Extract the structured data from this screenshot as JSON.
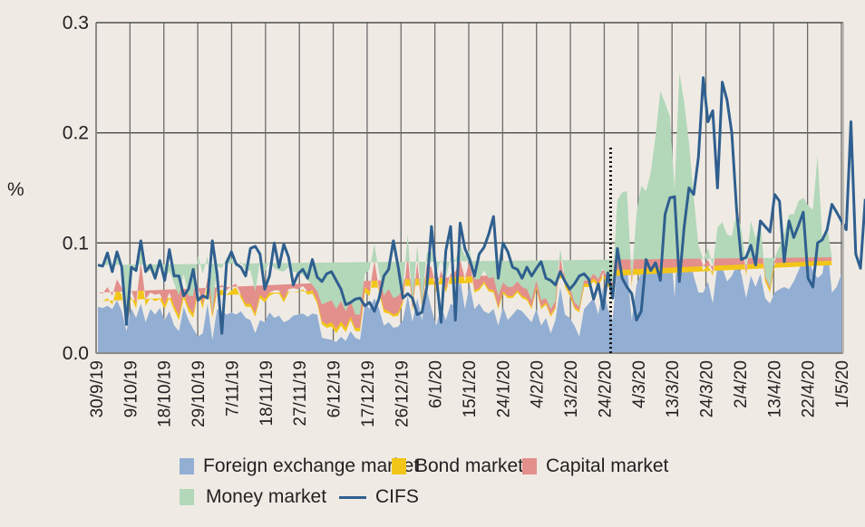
{
  "chart_data": {
    "type": "area",
    "title": "",
    "xlabel": "",
    "ylabel": "%",
    "ylim": [
      0,
      0.3
    ],
    "yticks": [
      "0.0",
      "0.1",
      "0.2",
      "0.3"
    ],
    "ytick_values": [
      0,
      0.1,
      0.2,
      0.3
    ],
    "grid": true,
    "legend_position": "bottom",
    "x_tick_labels": [
      "30/9/19",
      "9/10/19",
      "18/10/19",
      "29/10/19",
      "7/11/19",
      "18/11/19",
      "27/11/19",
      "6/12/19",
      "17/12/19",
      "26/12/19",
      "6/1/20",
      "15/1/20",
      "24/1/20",
      "4/2/20",
      "13/2/20",
      "24/2/20",
      "4/3/20",
      "13/3/20",
      "24/3/20",
      "2/4/20",
      "13/4/20",
      "22/4/20",
      "1/5/20"
    ],
    "annotation": {
      "type": "vertical-dotted-line",
      "at_label": "24/2/20"
    },
    "series": [
      {
        "name": "Foreign exchange market",
        "color": "#93aed3",
        "kind": "stacked-area",
        "values": [
          0.042,
          0.041,
          0.043,
          0.04,
          0.048,
          0.038,
          0.02,
          0.041,
          0.032,
          0.045,
          0.028,
          0.04,
          0.035,
          0.041,
          0.03,
          0.038,
          0.025,
          0.02,
          0.042,
          0.03,
          0.022,
          0.015,
          0.018,
          0.045,
          0.012,
          0.04,
          0.038,
          0.035,
          0.037,
          0.035,
          0.038,
          0.032,
          0.03,
          0.018,
          0.03,
          0.028,
          0.037,
          0.032,
          0.034,
          0.028,
          0.03,
          0.034,
          0.035,
          0.036,
          0.033,
          0.036,
          0.035,
          0.014,
          0.013,
          0.012,
          0.01,
          0.015,
          0.011,
          0.02,
          0.014,
          0.012,
          0.045,
          0.04,
          0.05,
          0.04,
          0.025,
          0.028,
          0.023,
          0.024,
          0.03,
          0.052,
          0.028,
          0.05,
          0.03,
          0.058,
          0.04,
          0.025,
          0.042,
          0.03,
          0.045,
          0.042,
          0.068,
          0.04,
          0.062,
          0.04,
          0.045,
          0.038,
          0.036,
          0.04,
          0.025,
          0.042,
          0.03,
          0.035,
          0.04,
          0.038,
          0.033,
          0.028,
          0.04,
          0.025,
          0.032,
          0.018,
          0.03,
          0.06,
          0.035,
          0.032,
          0.025,
          0.015,
          0.04,
          0.045,
          0.05,
          0.035,
          0.06,
          0.04,
          0.03,
          0.08,
          0.082,
          0.08,
          0.03,
          0.062,
          0.073,
          0.075,
          0.1,
          0.107,
          0.13,
          0.125,
          0.11,
          0.05,
          0.13,
          0.115,
          0.092,
          0.07,
          0.055,
          0.055,
          0.065,
          0.045,
          0.08,
          0.078,
          0.065,
          0.07,
          0.08,
          0.072,
          0.05,
          0.07,
          0.06,
          0.072,
          0.05,
          0.045,
          0.055,
          0.058,
          0.06,
          0.058,
          0.065,
          0.075,
          0.085,
          0.085,
          0.075,
          0.068,
          0.072,
          0.1,
          0.055,
          0.06,
          0.072
        ]
      },
      {
        "name": "Bond market",
        "color": "#f2c619",
        "kind": "stacked-area",
        "values": [
          0.005,
          0.006,
          0.007,
          0.004,
          0.012,
          0.015,
          0.004,
          0.01,
          0.008,
          0.03,
          0.015,
          0.01,
          0.012,
          0.008,
          0.01,
          0.012,
          0.014,
          0.01,
          0.008,
          0.008,
          0.01,
          0.04,
          0.022,
          0.018,
          0.02,
          0.015,
          0.02,
          0.018,
          0.02,
          0.025,
          0.012,
          0.01,
          0.012,
          0.015,
          0.02,
          0.018,
          0.015,
          0.022,
          0.02,
          0.018,
          0.025,
          0.022,
          0.02,
          0.022,
          0.02,
          0.018,
          0.01,
          0.012,
          0.01,
          0.012,
          0.008,
          0.01,
          0.008,
          0.01,
          0.006,
          0.008,
          0.01,
          0.012,
          0.03,
          0.015,
          0.012,
          0.008,
          0.01,
          0.01,
          0.015,
          0.035,
          0.01,
          0.03,
          0.01,
          0.02,
          0.035,
          0.03,
          0.03,
          0.025,
          0.025,
          0.03,
          0.015,
          0.025,
          0.02,
          0.015,
          0.012,
          0.025,
          0.02,
          0.015,
          0.015,
          0.012,
          0.02,
          0.015,
          0.015,
          0.012,
          0.015,
          0.012,
          0.018,
          0.015,
          0.012,
          0.015,
          0.01,
          0.025,
          0.025,
          0.02,
          0.015,
          0.022,
          0.02,
          0.015,
          0.015,
          0.025,
          0.01,
          0.02,
          0.028,
          0.05,
          0.055,
          0.055,
          0.03,
          0.055,
          0.065,
          0.06,
          0.05,
          0.075,
          0.085,
          0.08,
          0.085,
          0.085,
          0.1,
          0.09,
          0.08,
          0.06,
          0.035,
          0.02,
          0.015,
          0.025,
          0.02,
          0.025,
          0.03,
          0.025,
          0.035,
          0.03,
          0.02,
          0.035,
          0.03,
          0.035,
          0.015,
          0.01,
          0.025,
          0.03,
          0.04,
          0.055,
          0.048,
          0.05,
          0.045,
          0.04,
          0.045,
          0.095,
          0.022,
          0.01,
          0.025
        ]
      },
      {
        "name": "Capital market",
        "color": "#e38f8b",
        "kind": "stacked-area",
        "values": [
          0.008,
          0.007,
          0.01,
          0.008,
          0.007,
          0.006,
          0.004,
          0.006,
          0.005,
          0.008,
          0.006,
          0.005,
          0.006,
          0.005,
          0.004,
          0.005,
          0.004,
          0.004,
          0.004,
          0.004,
          0.004,
          0.004,
          0.004,
          0.005,
          0.003,
          0.004,
          0.004,
          0.004,
          0.004,
          0.003,
          0.003,
          0.003,
          0.003,
          0.003,
          0.003,
          0.003,
          0.003,
          0.003,
          0.003,
          0.003,
          0.003,
          0.003,
          0.003,
          0.003,
          0.003,
          0.003,
          0.003,
          0.003,
          0.003,
          0.004,
          0.004,
          0.004,
          0.004,
          0.003,
          0.003,
          0.003,
          0.005,
          0.004,
          0.004,
          0.003,
          0.003,
          0.002,
          0.002,
          0.003,
          0.003,
          0.003,
          0.002,
          0.003,
          0.002,
          0.003,
          0.003,
          0.003,
          0.003,
          0.003,
          0.002,
          0.002,
          0.002,
          0.003,
          0.002,
          0.002,
          0.002,
          0.002,
          0.002,
          0.002,
          0.002,
          0.002,
          0.002,
          0.002,
          0.002,
          0.002,
          0.002,
          0.002,
          0.002,
          0.002,
          0.002,
          0.002,
          0.002,
          0.003,
          0.003,
          0.003,
          0.002,
          0.002,
          0.003,
          0.003,
          0.003,
          0.003,
          0.003,
          0.003,
          0.003,
          0.003,
          0.003,
          0.004,
          0.003,
          0.003,
          0.004,
          0.004,
          0.004,
          0.005,
          0.005,
          0.005,
          0.005,
          0.004,
          0.005,
          0.005,
          0.005,
          0.004,
          0.003,
          0.004,
          0.005,
          0.004,
          0.004,
          0.004,
          0.003,
          0.003,
          0.003,
          0.003,
          0.003,
          0.003,
          0.004,
          0.003,
          0.003,
          0.003,
          0.004,
          0.005,
          0.005,
          0.007,
          0.008,
          0.008,
          0.007,
          0.006,
          0.006,
          0.007,
          0.005,
          0.004,
          0.004
        ]
      },
      {
        "name": "Money market",
        "color": "#b3d7b9",
        "kind": "stacked-area",
        "values": [
          0.025,
          0.026,
          0.031,
          0.022,
          0.025,
          0.019,
          0.002,
          0.021,
          0.028,
          0.02,
          0.024,
          0.02,
          0.015,
          0.03,
          0.022,
          0.02,
          0.02,
          0.018,
          0.018,
          0.01,
          0.016,
          0.03,
          0.028,
          0.02,
          0.002,
          0.02,
          0.015,
          0.03,
          0.025,
          0.015,
          0.03,
          0.03,
          0.03,
          0.02,
          0.03,
          0.025,
          0.028,
          0.02,
          0.018,
          0.025,
          0.02,
          0.015,
          0.015,
          0.01,
          0.01,
          0.005,
          0.008,
          0.015,
          0.02,
          0.02,
          0.018,
          0.018,
          0.015,
          0.015,
          0.012,
          0.012,
          0.012,
          0.02,
          0.015,
          0.015,
          0.012,
          0.02,
          0.015,
          0.015,
          0.01,
          0.018,
          0.004,
          0.015,
          0.002,
          0.01,
          0.015,
          0.015,
          0.01,
          0.01,
          0.015,
          0.01,
          0.015,
          0.02,
          0.01,
          0.01,
          0.008,
          0.01,
          0.01,
          0.012,
          0.01,
          0.008,
          0.008,
          0.008,
          0.008,
          0.008,
          0.008,
          0.006,
          0.006,
          0.006,
          0.004,
          0.005,
          0.005,
          0.007,
          0.005,
          0.005,
          0.004,
          0.003,
          0.003,
          0.003,
          0.004,
          0.004,
          0.004,
          0.004,
          0.003,
          0.006,
          0.006,
          0.008,
          0.004,
          0.007,
          0.01,
          0.008,
          0.01,
          0.01,
          0.018,
          0.017,
          0.015,
          0.01,
          0.02,
          0.018,
          0.015,
          0.008,
          0.005,
          0.006,
          0.01,
          0.005,
          0.01,
          0.012,
          0.01,
          0.008,
          0.01,
          0.008,
          0.005,
          0.012,
          0.01,
          0.01,
          0.002,
          0.002,
          0.003,
          0.004,
          0.004,
          0.006,
          0.005,
          0.005,
          0.004,
          0.003,
          0.004,
          0.01,
          0.003,
          0.002,
          0.003
        ]
      },
      {
        "name": "CIFS",
        "color": "#2f5f8f",
        "kind": "line",
        "values": [
          0.08,
          0.079,
          0.091,
          0.074,
          0.092,
          0.078,
          0.026,
          0.078,
          0.075,
          0.102,
          0.074,
          0.08,
          0.068,
          0.084,
          0.066,
          0.094,
          0.07,
          0.07,
          0.052,
          0.058,
          0.076,
          0.048,
          0.052,
          0.05,
          0.102,
          0.072,
          0.018,
          0.082,
          0.092,
          0.081,
          0.078,
          0.07,
          0.095,
          0.097,
          0.09,
          0.058,
          0.07,
          0.1,
          0.078,
          0.099,
          0.087,
          0.062,
          0.072,
          0.076,
          0.068,
          0.085,
          0.069,
          0.065,
          0.072,
          0.074,
          0.066,
          0.058,
          0.044,
          0.046,
          0.049,
          0.05,
          0.043,
          0.046,
          0.038,
          0.05,
          0.07,
          0.076,
          0.102,
          0.078,
          0.05,
          0.054,
          0.05,
          0.035,
          0.037,
          0.06,
          0.115,
          0.07,
          0.028,
          0.093,
          0.115,
          0.03,
          0.118,
          0.095,
          0.085,
          0.07,
          0.09,
          0.096,
          0.108,
          0.124,
          0.068,
          0.1,
          0.092,
          0.078,
          0.076,
          0.068,
          0.078,
          0.07,
          0.077,
          0.083,
          0.068,
          0.066,
          0.062,
          0.074,
          0.065,
          0.058,
          0.063,
          0.07,
          0.072,
          0.067,
          0.049,
          0.063,
          0.04,
          0.073,
          0.05,
          0.095,
          0.068,
          0.06,
          0.054,
          0.03,
          0.038,
          0.085,
          0.075,
          0.082,
          0.066,
          0.126,
          0.141,
          0.142,
          0.065,
          0.114,
          0.15,
          0.144,
          0.178,
          0.25,
          0.21,
          0.22,
          0.15,
          0.246,
          0.23,
          0.2,
          0.13,
          0.085,
          0.087,
          0.098,
          0.08,
          0.12,
          0.115,
          0.11,
          0.144,
          0.138,
          0.083,
          0.12,
          0.105,
          0.116,
          0.128,
          0.068,
          0.06,
          0.1,
          0.103,
          0.112,
          0.135,
          0.128,
          0.12,
          0.112,
          0.21,
          0.09,
          0.077,
          0.14
        ]
      }
    ]
  }
}
